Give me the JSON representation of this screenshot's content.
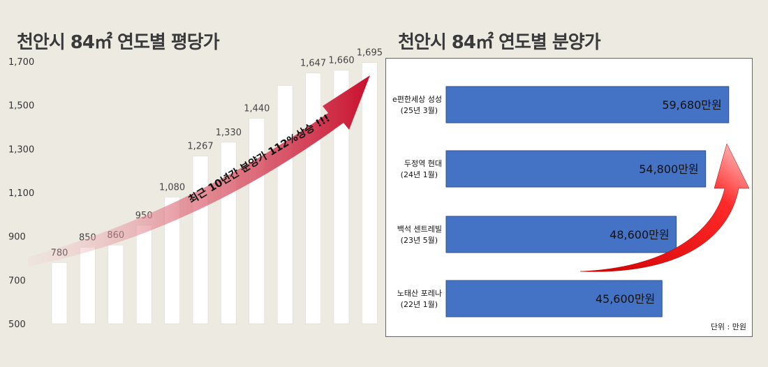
{
  "left": {
    "title": "천안시 84㎡ 연도별 평당가"
  },
  "right": {
    "title": "천안시 84㎡ 연도별 분양가",
    "unit_note": "단위 : 만원"
  },
  "colors": {
    "background": "#edeae2",
    "bar_left": "#ffffff",
    "bar_right": "#4472c4",
    "arrow": "#c8102e"
  },
  "chart_data": [
    {
      "type": "bar",
      "orientation": "vertical",
      "title": "천안시 84㎡ 연도별 평당가",
      "categories": [
        "",
        "",
        "",
        "",
        "",
        "",
        "",
        "",
        "",
        "",
        "",
        ""
      ],
      "values": [
        780,
        850,
        860,
        950,
        1080,
        1267,
        1330,
        1440,
        1590,
        1647,
        1660,
        1695
      ],
      "data_labels": [
        "780",
        "850",
        "860",
        "950",
        "1,080",
        "1,267",
        "1,330",
        "1,440",
        "",
        "1,647",
        "1,660",
        "1,695"
      ],
      "ylim": [
        500,
        1700
      ],
      "yticks": [
        "500",
        "700",
        "900",
        "1,100",
        "1,300",
        "1,500",
        "1,700"
      ],
      "ytick_values": [
        500,
        700,
        900,
        1100,
        1300,
        1500,
        1700
      ],
      "grid": false,
      "annotation": "최근 10년간 분양가 112%상승 !!!"
    },
    {
      "type": "bar",
      "orientation": "horizontal",
      "title": "천안시 84㎡ 연도별 분양가",
      "categories": [
        {
          "line1": "e편한세상 성성",
          "line2": "(25년 3월)"
        },
        {
          "line1": "두정역 현대",
          "line2": "(24년 1월)"
        },
        {
          "line1": "백석 센트레빌",
          "line2": "(23년 5월)"
        },
        {
          "line1": "노태산 포레나",
          "line2": "(22년 1월)"
        }
      ],
      "values": [
        59680,
        54800,
        48600,
        45600
      ],
      "data_labels": [
        "59,680만원",
        "54,800만원",
        "48,600만원",
        "45,600만원"
      ],
      "unit": "단위 : 만원"
    }
  ]
}
